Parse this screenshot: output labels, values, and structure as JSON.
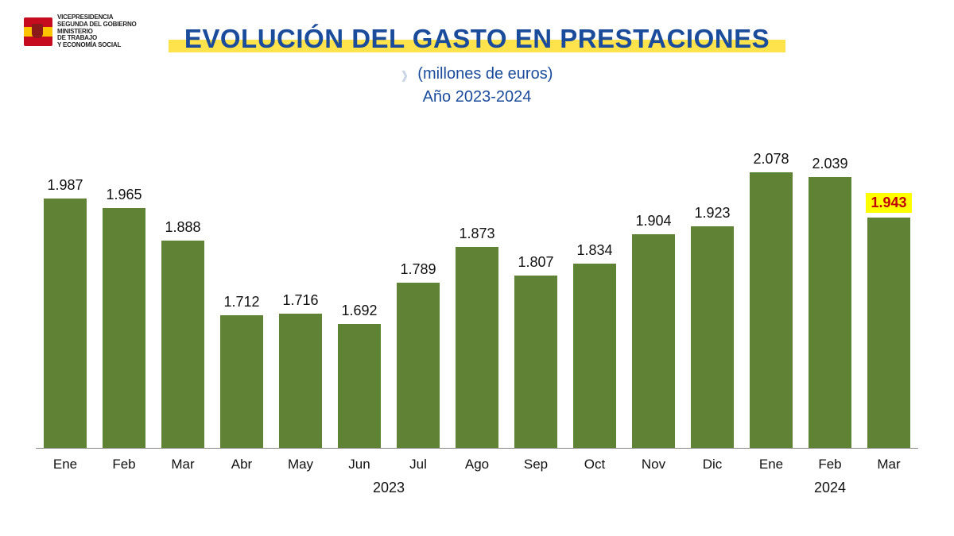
{
  "logo": {
    "line1": "VICEPRESIDENCIA",
    "line2": "SEGUNDA DEL GOBIERNO",
    "line3": "MINISTERIO",
    "line4": "DE TRABAJO",
    "line5": "Y ECONOMÍA SOCIAL"
  },
  "header": {
    "title": "EVOLUCIÓN DEL GASTO EN PRESTACIONES",
    "subtitle": "(millones  de euros)",
    "subtitle2": "Año 2023-2024",
    "title_color": "#1b4c9c",
    "underline_color": "#ffe34d"
  },
  "chart": {
    "type": "bar",
    "bar_color": "#5f8234",
    "axis_color": "#888888",
    "value_fontsize": 18,
    "label_fontsize": 17,
    "year_fontsize": 18,
    "highlight_bg": "#ffff00",
    "highlight_fg": "#c00000",
    "y_visual_min": 1400,
    "y_visual_max": 2100,
    "months": [
      "Ene",
      "Feb",
      "Mar",
      "Abr",
      "May",
      "Jun",
      "Jul",
      "Ago",
      "Sep",
      "Oct",
      "Nov",
      "Dic",
      "Ene",
      "Feb",
      "Mar"
    ],
    "values_raw": [
      1987,
      1965,
      1888,
      1712,
      1716,
      1692,
      1789,
      1873,
      1807,
      1834,
      1904,
      1923,
      2078,
      2039,
      1943
    ],
    "values_label": [
      "1.987",
      "1.965",
      "1.888",
      "1.712",
      "1.716",
      "1.692",
      "1.789",
      "1.873",
      "1.807",
      "1.834",
      "1.904",
      "1.923",
      "2.078",
      "2.039",
      "1.943"
    ],
    "highlight_index": 14,
    "year_groups": [
      {
        "label": "2023",
        "span": 12
      },
      {
        "label": "2024",
        "span": 3
      }
    ]
  }
}
